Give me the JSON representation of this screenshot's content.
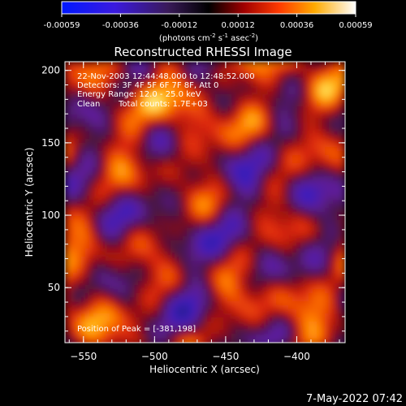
{
  "colorbar": {
    "ticks": [
      "-0.00059",
      "-0.00036",
      "-0.00012",
      "0.00012",
      "0.00036",
      "0.00059"
    ],
    "units_prefix": "(photons cm",
    "units_exp1": "-2",
    "units_mid": " s",
    "units_exp2": "-1",
    "units_mid2": " asec",
    "units_exp3": "-2",
    "units_suffix": ")"
  },
  "title": "Reconstructed RHESSI Image",
  "info": {
    "time": "22-Nov-2003 12:44:48.000 to 12:48:52.000",
    "detectors": "Detectors: 3F 4F 5F 6F 7F 8F, Att 0",
    "energy": "Energy Range: 12.0 - 25.0 keV",
    "method": "Clean",
    "counts": "Total counts: 1.7E+03",
    "peak": "Position of Peak = [-381,198]"
  },
  "timestamp": "7-May-2022 07:42",
  "chart_data": {
    "type": "heatmap",
    "title": "Reconstructed RHESSI Image",
    "xlabel": "Heliocentric X (arcsec)",
    "ylabel": "Heliocentric Y (arcsec)",
    "xlim": [
      -563,
      -366
    ],
    "ylim": [
      12,
      206
    ],
    "xticks": [
      -550,
      -500,
      -450,
      -400
    ],
    "yticks": [
      50,
      100,
      150,
      200
    ],
    "xtick_labels": [
      "−550",
      "−500",
      "−450",
      "−400"
    ],
    "ytick_labels": [
      "50",
      "100",
      "150",
      "200"
    ],
    "colorscale": "RHESSI red-temperature (blue-purple-red-yellow-white)",
    "value_range": [
      -0.00059,
      0.00059
    ],
    "peak_position": [
      -381,
      198
    ]
  }
}
